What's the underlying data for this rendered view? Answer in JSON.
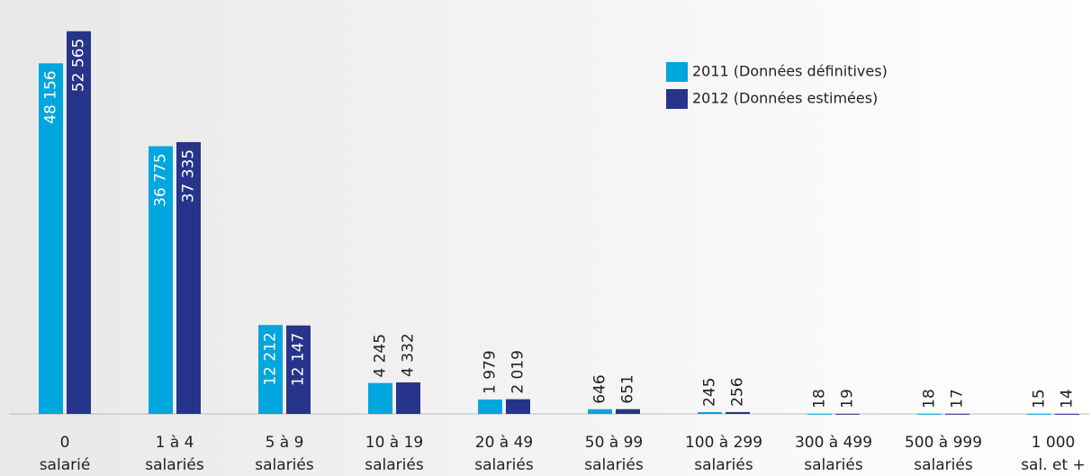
{
  "chart_data": {
    "type": "bar",
    "categories": [
      [
        "0",
        "salarié"
      ],
      [
        "1 à 4",
        "salariés"
      ],
      [
        "5 à 9",
        "salariés"
      ],
      [
        "10 à 19",
        "salariés"
      ],
      [
        "20 à 49",
        "salariés"
      ],
      [
        "50 à 99",
        "salariés"
      ],
      [
        "100 à 299",
        "salariés"
      ],
      [
        "300 à 499",
        "salariés"
      ],
      [
        "500 à 999",
        "salariés"
      ],
      [
        "1 000",
        "sal. et +"
      ]
    ],
    "series": [
      {
        "name": "2011 (Données définitives)",
        "color": "#00a6de",
        "values": [
          48156,
          36775,
          12212,
          4245,
          1979,
          646,
          245,
          18,
          18,
          15
        ],
        "value_labels": [
          "48 156",
          "36 775",
          "12 212",
          "4 245",
          "1 979",
          "646",
          "245",
          "18",
          "18",
          "15"
        ]
      },
      {
        "name": "2012 (Données estimées)",
        "color": "#27348b",
        "values": [
          52565,
          37335,
          12147,
          4332,
          2019,
          651,
          256,
          19,
          17,
          14
        ],
        "value_labels": [
          "52 565",
          "37 335",
          "12 147",
          "4 332",
          "2 019",
          "651",
          "256",
          "19",
          "17",
          "14"
        ]
      }
    ],
    "ylim": [
      0,
      55000
    ],
    "grid": false,
    "legend": "top-right"
  }
}
